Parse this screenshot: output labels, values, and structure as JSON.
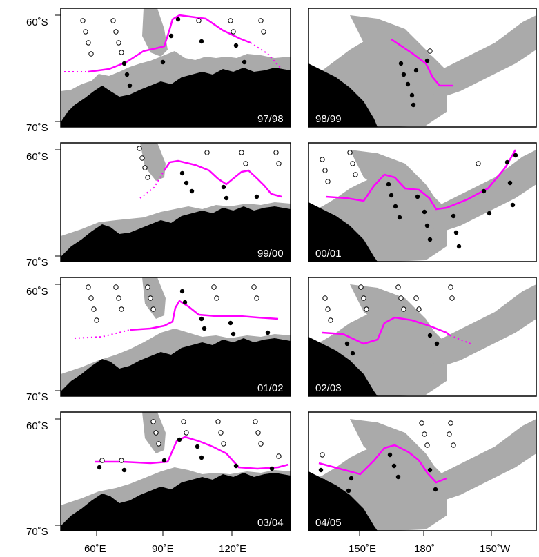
{
  "colors": {
    "continent": "#000000",
    "sea_ice_shelf": "#aaaaaa",
    "front_line": "#ff00ff",
    "station_filled": "#000000",
    "station_open": "#ffffff",
    "frame": "#000000"
  },
  "axes": {
    "lat_labels": [
      "60˚S",
      "70˚S"
    ],
    "lon_labels_left": [
      "60˚E",
      "90˚E",
      "120˚E"
    ],
    "lon_labels_right": [
      "150˚E",
      "180˚",
      "150˚W"
    ]
  },
  "panels": [
    {
      "season": "97/98",
      "column": "left"
    },
    {
      "season": "98/99",
      "column": "right"
    },
    {
      "season": "99/00",
      "column": "left"
    },
    {
      "season": "00/01",
      "column": "right"
    },
    {
      "season": "01/02",
      "column": "left"
    },
    {
      "season": "02/03",
      "column": "right"
    },
    {
      "season": "03/04",
      "column": "left"
    },
    {
      "season": "04/05",
      "column": "right"
    }
  ],
  "icons": {
    "station_filled": "filled-circle-marker-icon",
    "station_open": "open-circle-marker-icon"
  }
}
